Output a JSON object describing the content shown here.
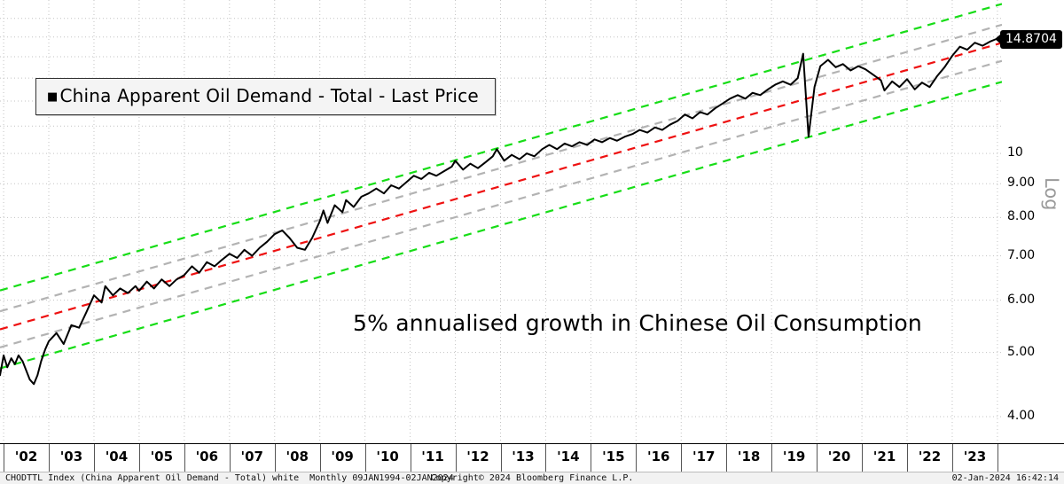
{
  "legend": {
    "marker": "■",
    "label": "China Apparent Oil Demand - Total - Last Price"
  },
  "annotation": {
    "text": "5% annualised growth in Chinese Oil Consumption"
  },
  "last_price_badge": {
    "value": "14.8704",
    "bg": "#000000",
    "fg": "#ffffff"
  },
  "axis": {
    "log_label": "Log",
    "y_ticks": [
      {
        "value": 10,
        "label": "10"
      },
      {
        "value": 9,
        "label": "9.00"
      },
      {
        "value": 8,
        "label": "8.00"
      },
      {
        "value": 7,
        "label": "7.00"
      },
      {
        "value": 6,
        "label": "6.00"
      },
      {
        "value": 5,
        "label": "5.00"
      },
      {
        "value": 4,
        "label": "4.00"
      }
    ],
    "x_labels": [
      "'02",
      "'03",
      "'04",
      "'05",
      "'06",
      "'07",
      "'08",
      "'09",
      "'10",
      "'11",
      "'12",
      "'13",
      "'14",
      "'15",
      "'16",
      "'17",
      "'18",
      "'19",
      "'20",
      "'21",
      "'22",
      "'23"
    ]
  },
  "footer": {
    "left": "CHODTTL Index (China Apparent Oil Demand - Total) white  Monthly 09JAN1994-02JAN2024",
    "center": "Copyright© 2024 Bloomberg Finance L.P.",
    "right": "02-Jan-2024 16:42:14"
  },
  "chart_data": {
    "type": "line",
    "title": "China Apparent Oil Demand - Total - Last Price",
    "y_scale": "log",
    "x_range": [
      2001.92,
      2024.1
    ],
    "ylim": [
      3.646,
      17.06
    ],
    "last_price": 14.8704,
    "grid": {
      "x_tick_years": [
        2002,
        2003,
        2004,
        2005,
        2006,
        2007,
        2008,
        2009,
        2010,
        2011,
        2012,
        2013,
        2014,
        2015,
        2016,
        2017,
        2018,
        2019,
        2020,
        2021,
        2022,
        2023,
        2024
      ],
      "y_values": [
        4,
        5,
        6,
        7,
        8,
        9,
        10,
        11,
        12,
        13,
        14,
        15,
        16
      ],
      "color": "#c3c3c3"
    },
    "channel": {
      "description": "log-linear regression channel, 5% annualised growth",
      "start_year": 2001.92,
      "end_year": 2024.1,
      "center_start_value": 5.42,
      "annual_growth_pct": 4.6,
      "lines": [
        {
          "name": "center",
          "factor": 1.0,
          "color": "#ee1111"
        },
        {
          "name": "upper-inner",
          "factor": 1.065,
          "color": "#b3b3b3"
        },
        {
          "name": "lower-inner",
          "factor": 0.939,
          "color": "#b3b3b3"
        },
        {
          "name": "upper-outer",
          "factor": 1.145,
          "color": "#17dd17"
        },
        {
          "name": "lower-outer",
          "factor": 0.873,
          "color": "#17dd17"
        }
      ]
    },
    "series": [
      {
        "name": "China Apparent Oil Demand - Total",
        "color": "#000000",
        "points": [
          [
            2001.92,
            4.62
          ],
          [
            2002.0,
            4.95
          ],
          [
            2002.08,
            4.75
          ],
          [
            2002.17,
            4.9
          ],
          [
            2002.25,
            4.8
          ],
          [
            2002.33,
            4.95
          ],
          [
            2002.42,
            4.85
          ],
          [
            2002.5,
            4.7
          ],
          [
            2002.58,
            4.55
          ],
          [
            2002.67,
            4.48
          ],
          [
            2002.75,
            4.62
          ],
          [
            2002.83,
            4.85
          ],
          [
            2002.92,
            5.05
          ],
          [
            2003.0,
            5.2
          ],
          [
            2003.17,
            5.35
          ],
          [
            2003.33,
            5.15
          ],
          [
            2003.5,
            5.5
          ],
          [
            2003.67,
            5.45
          ],
          [
            2003.83,
            5.75
          ],
          [
            2004.0,
            6.1
          ],
          [
            2004.17,
            5.95
          ],
          [
            2004.25,
            6.3
          ],
          [
            2004.42,
            6.1
          ],
          [
            2004.58,
            6.25
          ],
          [
            2004.75,
            6.15
          ],
          [
            2004.92,
            6.3
          ],
          [
            2005.0,
            6.2
          ],
          [
            2005.17,
            6.4
          ],
          [
            2005.33,
            6.25
          ],
          [
            2005.5,
            6.45
          ],
          [
            2005.67,
            6.3
          ],
          [
            2005.83,
            6.45
          ],
          [
            2006.0,
            6.55
          ],
          [
            2006.17,
            6.75
          ],
          [
            2006.33,
            6.6
          ],
          [
            2006.5,
            6.85
          ],
          [
            2006.67,
            6.75
          ],
          [
            2006.83,
            6.9
          ],
          [
            2007.0,
            7.05
          ],
          [
            2007.17,
            6.95
          ],
          [
            2007.33,
            7.15
          ],
          [
            2007.5,
            7.0
          ],
          [
            2007.67,
            7.2
          ],
          [
            2007.83,
            7.35
          ],
          [
            2008.0,
            7.55
          ],
          [
            2008.17,
            7.65
          ],
          [
            2008.33,
            7.45
          ],
          [
            2008.5,
            7.2
          ],
          [
            2008.67,
            7.15
          ],
          [
            2008.83,
            7.45
          ],
          [
            2009.0,
            7.9
          ],
          [
            2009.08,
            8.2
          ],
          [
            2009.17,
            7.85
          ],
          [
            2009.33,
            8.35
          ],
          [
            2009.5,
            8.15
          ],
          [
            2009.58,
            8.5
          ],
          [
            2009.75,
            8.3
          ],
          [
            2009.92,
            8.6
          ],
          [
            2010.08,
            8.7
          ],
          [
            2010.25,
            8.85
          ],
          [
            2010.42,
            8.7
          ],
          [
            2010.58,
            8.95
          ],
          [
            2010.75,
            8.85
          ],
          [
            2010.92,
            9.05
          ],
          [
            2011.08,
            9.25
          ],
          [
            2011.25,
            9.15
          ],
          [
            2011.42,
            9.35
          ],
          [
            2011.58,
            9.25
          ],
          [
            2011.75,
            9.4
          ],
          [
            2011.92,
            9.55
          ],
          [
            2012.0,
            9.75
          ],
          [
            2012.17,
            9.45
          ],
          [
            2012.33,
            9.65
          ],
          [
            2012.5,
            9.5
          ],
          [
            2012.67,
            9.7
          ],
          [
            2012.83,
            9.9
          ],
          [
            2012.92,
            10.15
          ],
          [
            2013.08,
            9.75
          ],
          [
            2013.25,
            9.95
          ],
          [
            2013.42,
            9.8
          ],
          [
            2013.58,
            10.0
          ],
          [
            2013.75,
            9.9
          ],
          [
            2013.92,
            10.15
          ],
          [
            2014.08,
            10.3
          ],
          [
            2014.25,
            10.15
          ],
          [
            2014.42,
            10.35
          ],
          [
            2014.58,
            10.25
          ],
          [
            2014.75,
            10.4
          ],
          [
            2014.92,
            10.3
          ],
          [
            2015.08,
            10.5
          ],
          [
            2015.25,
            10.4
          ],
          [
            2015.42,
            10.55
          ],
          [
            2015.58,
            10.45
          ],
          [
            2015.75,
            10.6
          ],
          [
            2015.92,
            10.7
          ],
          [
            2016.08,
            10.85
          ],
          [
            2016.25,
            10.75
          ],
          [
            2016.42,
            10.95
          ],
          [
            2016.58,
            10.85
          ],
          [
            2016.75,
            11.05
          ],
          [
            2016.92,
            11.2
          ],
          [
            2017.08,
            11.45
          ],
          [
            2017.25,
            11.3
          ],
          [
            2017.42,
            11.55
          ],
          [
            2017.58,
            11.45
          ],
          [
            2017.75,
            11.7
          ],
          [
            2017.92,
            11.9
          ],
          [
            2018.08,
            12.1
          ],
          [
            2018.25,
            12.25
          ],
          [
            2018.42,
            12.1
          ],
          [
            2018.58,
            12.35
          ],
          [
            2018.75,
            12.25
          ],
          [
            2018.92,
            12.5
          ],
          [
            2019.08,
            12.7
          ],
          [
            2019.25,
            12.85
          ],
          [
            2019.42,
            12.7
          ],
          [
            2019.58,
            13.0
          ],
          [
            2019.7,
            14.15
          ],
          [
            2019.82,
            10.6
          ],
          [
            2019.95,
            12.6
          ],
          [
            2020.08,
            13.55
          ],
          [
            2020.25,
            13.85
          ],
          [
            2020.42,
            13.5
          ],
          [
            2020.58,
            13.65
          ],
          [
            2020.75,
            13.35
          ],
          [
            2020.92,
            13.55
          ],
          [
            2021.08,
            13.4
          ],
          [
            2021.25,
            13.15
          ],
          [
            2021.42,
            12.9
          ],
          [
            2021.5,
            12.45
          ],
          [
            2021.67,
            12.85
          ],
          [
            2021.83,
            12.6
          ],
          [
            2022.0,
            12.95
          ],
          [
            2022.17,
            12.5
          ],
          [
            2022.33,
            12.8
          ],
          [
            2022.5,
            12.6
          ],
          [
            2022.67,
            13.1
          ],
          [
            2022.83,
            13.5
          ],
          [
            2023.0,
            14.05
          ],
          [
            2023.17,
            14.5
          ],
          [
            2023.33,
            14.35
          ],
          [
            2023.5,
            14.7
          ],
          [
            2023.67,
            14.55
          ],
          [
            2023.83,
            14.75
          ],
          [
            2023.95,
            14.87
          ]
        ]
      }
    ]
  }
}
